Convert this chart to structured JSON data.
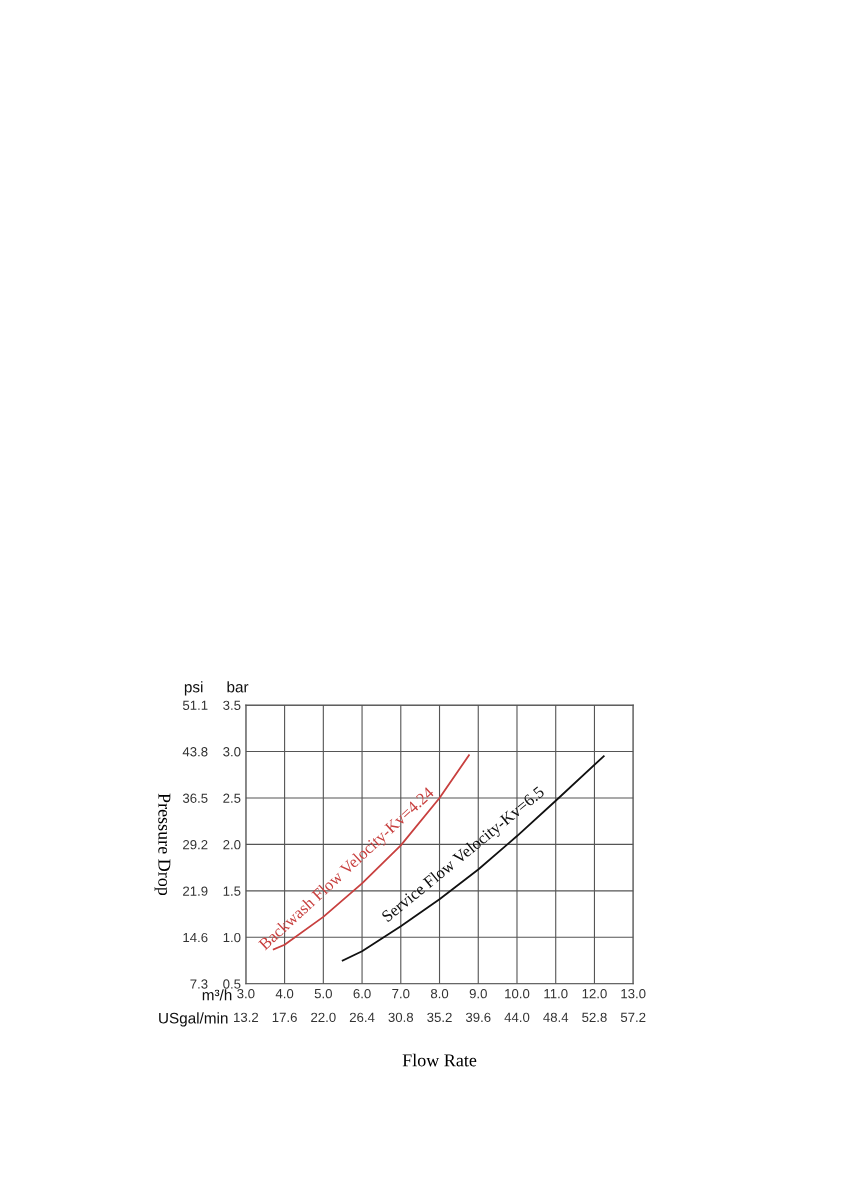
{
  "chart_data": {
    "type": "line",
    "xlabel": "Flow Rate",
    "ylabel": "Pressure Drop",
    "annotations": [
      "psi",
      "bar",
      "m³/h",
      "USgal/min"
    ],
    "series": [
      {
        "name": "Backwash Flow Velocity-Kv=4.24",
        "color": "#c8403f",
        "axis": "y2",
        "x": [
          3.72,
          4.0,
          5.0,
          6.0,
          7.0,
          8.0,
          8.76
        ],
        "values": [
          0.87,
          0.92,
          1.22,
          1.58,
          1.99,
          2.5,
          2.96
        ]
      },
      {
        "name": "Service Flow Velocity-Kv=6.5",
        "color": "#111111",
        "axis": "y2",
        "x": [
          5.5,
          6.0,
          7.0,
          8.0,
          9.0,
          10.0,
          11.0,
          12.24
        ],
        "values": [
          0.75,
          0.85,
          1.12,
          1.41,
          1.73,
          2.09,
          2.47,
          2.95
        ]
      }
    ],
    "xlim": [
      3,
      13
    ],
    "xticks": [
      {
        "value": 3,
        "label": "3.0"
      },
      {
        "value": 4,
        "label": "4.0"
      },
      {
        "value": 5,
        "label": "5.0"
      },
      {
        "value": 6,
        "label": "6.0"
      },
      {
        "value": 7,
        "label": "7.0"
      },
      {
        "value": 8,
        "label": "8.0"
      },
      {
        "value": 9,
        "label": "9.0"
      },
      {
        "value": 10,
        "label": "10.0"
      },
      {
        "value": 11,
        "label": "11.0"
      },
      {
        "value": 12,
        "label": "12.0"
      },
      {
        "value": 13,
        "label": "13.0"
      }
    ],
    "x2lim": [
      13.2,
      57.2
    ],
    "x2ticks": [
      13.2,
      17.6,
      {
        "value": 22,
        "label": "22.0"
      },
      26.4,
      30.8,
      35.2,
      39.6,
      {
        "value": 44,
        "label": "44.0"
      },
      48.4,
      52.8,
      57.2
    ],
    "ylim": [
      7.3,
      51.1
    ],
    "yticks": [
      7.3,
      14.6,
      21.9,
      29.2,
      36.5,
      43.8,
      51.1
    ],
    "y2lim": [
      0.5,
      3.5
    ],
    "y2ticks": [
      0.5,
      {
        "value": 1,
        "label": "1.0"
      },
      1.5,
      {
        "value": 2,
        "label": "2.0"
      },
      2.5,
      {
        "value": 3,
        "label": "3.0"
      },
      3.5
    ],
    "grid": true,
    "legend": false,
    "marker": "none",
    "line_style": "solid"
  }
}
